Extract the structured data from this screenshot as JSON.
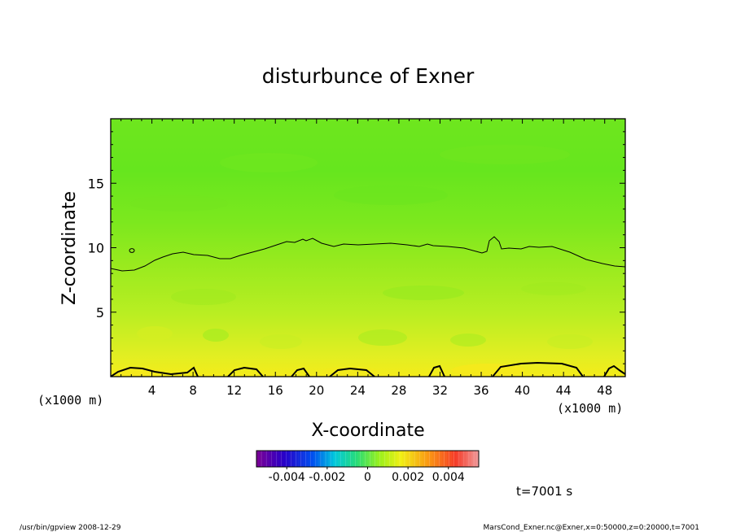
{
  "chart_data": {
    "type": "heatmap",
    "title": "disturbunce of Exner",
    "xlabel": "X-coordinate",
    "ylabel": "Z-coordinate",
    "x_unit_left": "(x1000 m)",
    "x_unit_right": "(x1000 m)",
    "xlim": [
      0,
      50
    ],
    "ylim": [
      0,
      20
    ],
    "x_ticks": [
      "4",
      "8",
      "12",
      "16",
      "20",
      "24",
      "28",
      "32",
      "36",
      "40",
      "44",
      "48"
    ],
    "y_ticks": [
      "5",
      "10",
      "15"
    ],
    "colorbar": {
      "tick_labels": [
        "-0.004",
        "-0.002",
        "0",
        "0.002",
        "0.004"
      ],
      "range": [
        -0.0055,
        0.0055
      ]
    },
    "field_description_values": {
      "z_levels": [
        0,
        2,
        5,
        8,
        10,
        15,
        20
      ],
      "values": [
        0.0024,
        0.0014,
        0.0009,
        0.0005,
        0.0002,
        -0.0003,
        -0.0006
      ]
    },
    "contour_levels": [
      0.0002,
      0.0023
    ],
    "time_label": "t=7001 s",
    "footer_left": "/usr/bin/gpview   2008-12-29",
    "footer_right": "MarsCond_Exner.nc@Exner,x=0:50000,z=0:20000,t=7001"
  }
}
